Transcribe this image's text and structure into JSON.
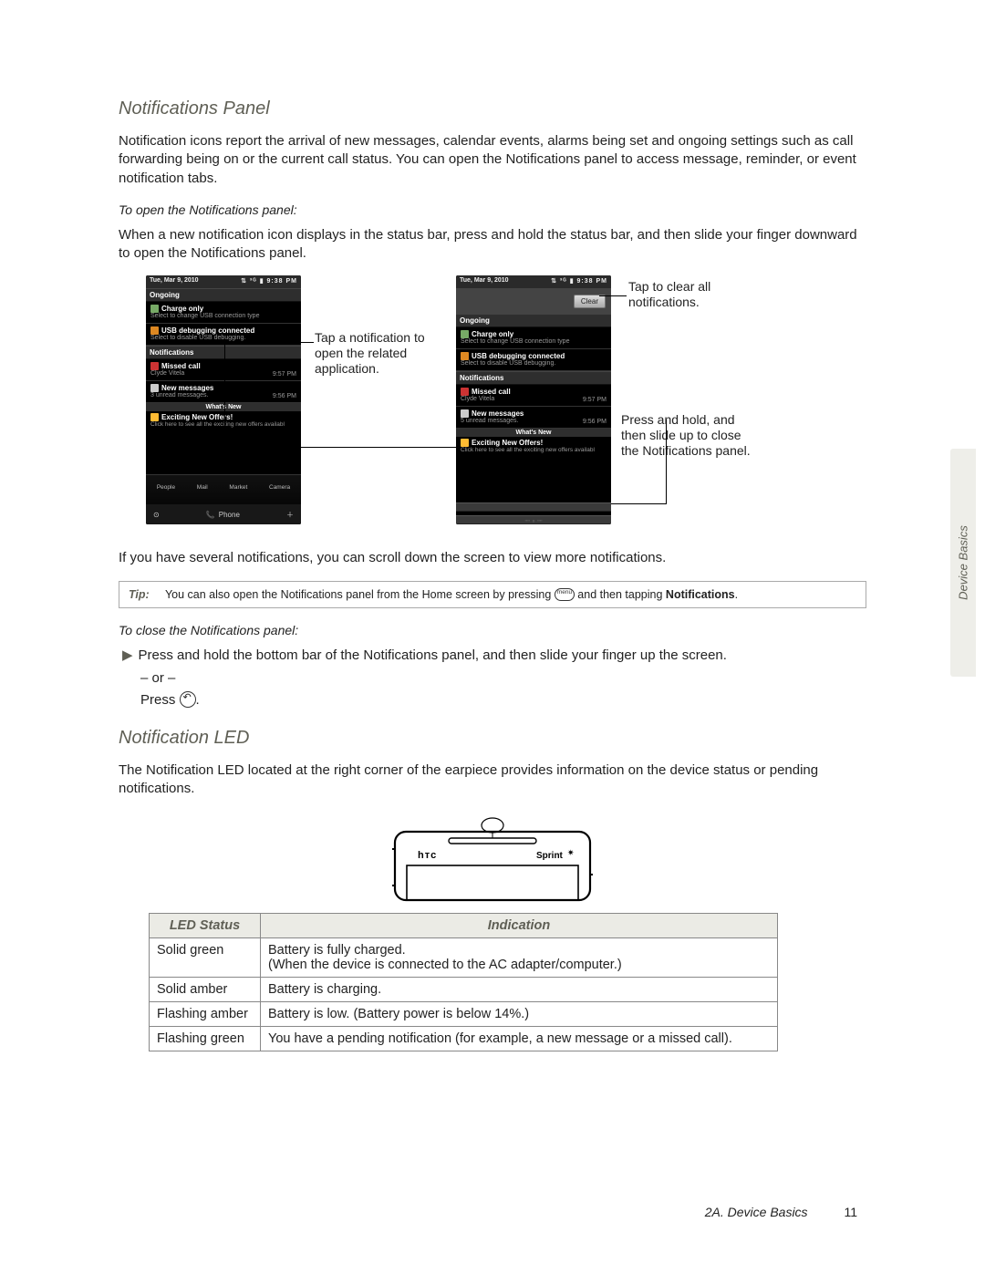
{
  "section1": {
    "heading": "Notifications Panel",
    "intro": "Notification icons report the arrival of new messages, calendar events, alarms being set and ongoing settings such as call forwarding being on or the current call status. You can open the Notifications panel to access message, reminder, or event notification tabs.",
    "sub_open": "To open the Notifications panel:",
    "open_text": "When a new notification icon displays in the status bar, press and hold the status bar, and then slide your finger downward to open the Notifications panel.",
    "after_screens": "If you have several notifications, you can scroll down the screen to view more notifications.",
    "tip_label": "Tip:",
    "tip_text_a": "You can also open the Notifications panel from the Home screen by pressing ",
    "tip_text_b": " and then tapping ",
    "tip_notif_word": "Notifications",
    "sub_close": "To close the Notifications panel:",
    "close_line": "Press and hold the bottom bar of the Notifications panel, and then slide your finger up the screen.",
    "or_line": "– or –",
    "press_back": "Press "
  },
  "callouts": {
    "c1": "Tap a notification to open the related application.",
    "c2": "Tap to clear all notifications.",
    "c3": "Press and hold, and then slide up to close the Notifications panel."
  },
  "phone": {
    "date": "Tue, Mar 9, 2010",
    "time_status": "9:38 PM",
    "clear": "Clear",
    "ongoing": "Ongoing",
    "charge_title": "Charge only",
    "charge_sub": "Select to change USB connection type",
    "usb_title": "USB debugging connected",
    "usb_sub": "Select to disable USB debugging.",
    "notifications": "Notifications",
    "missed_title": "Missed call",
    "missed_sub": "Clyde Vitela",
    "missed_time": "9:57 PM",
    "msgs_title": "New messages",
    "msgs_sub_3": "3 unread messages.",
    "msgs_sub_5": "5 unread messages.",
    "msgs_time": "9:56 PM",
    "whatsnew": "What's New",
    "offers_title": "Exciting New Offers!",
    "offers_sub": "Click here to see all the exciting new offers availabl",
    "dock": {
      "people": "People",
      "mail": "Mail",
      "market": "Market",
      "camera": "Camera",
      "phone": "Phone"
    }
  },
  "section2": {
    "heading": "Notification LED",
    "intro": "The Notification LED located at the right corner of the earpiece provides information on the device status or pending notifications.",
    "htc": "hTC",
    "sprint": "Sprint"
  },
  "table": {
    "col1": "LED Status",
    "col2": "Indication",
    "rows": [
      {
        "s": "Solid green",
        "i": "Battery is fully charged.\n(When the device is connected to the AC adapter/computer.)"
      },
      {
        "s": "Solid amber",
        "i": "Battery is charging."
      },
      {
        "s": "Flashing amber",
        "i": "Battery is low. (Battery power is below 14%.)"
      },
      {
        "s": "Flashing green",
        "i": "You have a pending notification (for example, a new message or a missed call)."
      }
    ]
  },
  "footer": {
    "chapter": "2A. Device Basics",
    "page": "11"
  },
  "side_tab": "Device Basics",
  "colors": {
    "heading": "#5f5f55",
    "tip_border": "#aaaaaa",
    "table_header_bg": "#ebebe5",
    "side_tab_bg": "#eeeee9"
  }
}
